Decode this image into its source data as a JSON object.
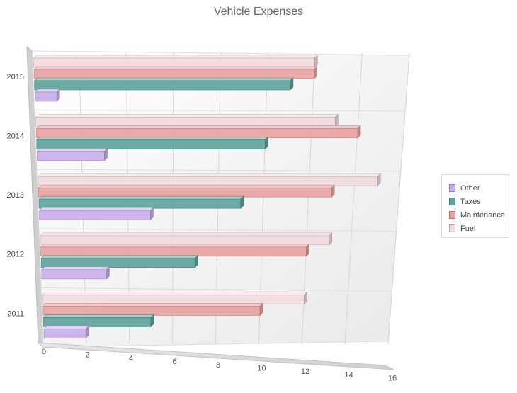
{
  "chart_data": {
    "type": "bar",
    "orientation": "horizontal",
    "style": "3d",
    "title": "Vehicle Expenses",
    "xlabel": "",
    "ylabel": "",
    "xlim": [
      0,
      16
    ],
    "x_ticks": [
      0,
      2,
      4,
      6,
      8,
      10,
      12,
      14,
      16
    ],
    "categories": [
      "2011",
      "2012",
      "2013",
      "2014",
      "2015"
    ],
    "series": [
      {
        "name": "Other",
        "color": "#c8b0ea",
        "values": [
          2,
          3,
          5,
          3,
          1
        ]
      },
      {
        "name": "Taxes",
        "color": "#5fa49c",
        "values": [
          5,
          7,
          9,
          10,
          11
        ]
      },
      {
        "name": "Maintenance",
        "color": "#e8a3a3",
        "values": [
          10,
          12,
          13,
          14,
          12
        ]
      },
      {
        "name": "Fuel",
        "color": "#f1dadd",
        "values": [
          12,
          13,
          15,
          13,
          12
        ]
      }
    ],
    "legend_position": "right",
    "grid": true
  }
}
